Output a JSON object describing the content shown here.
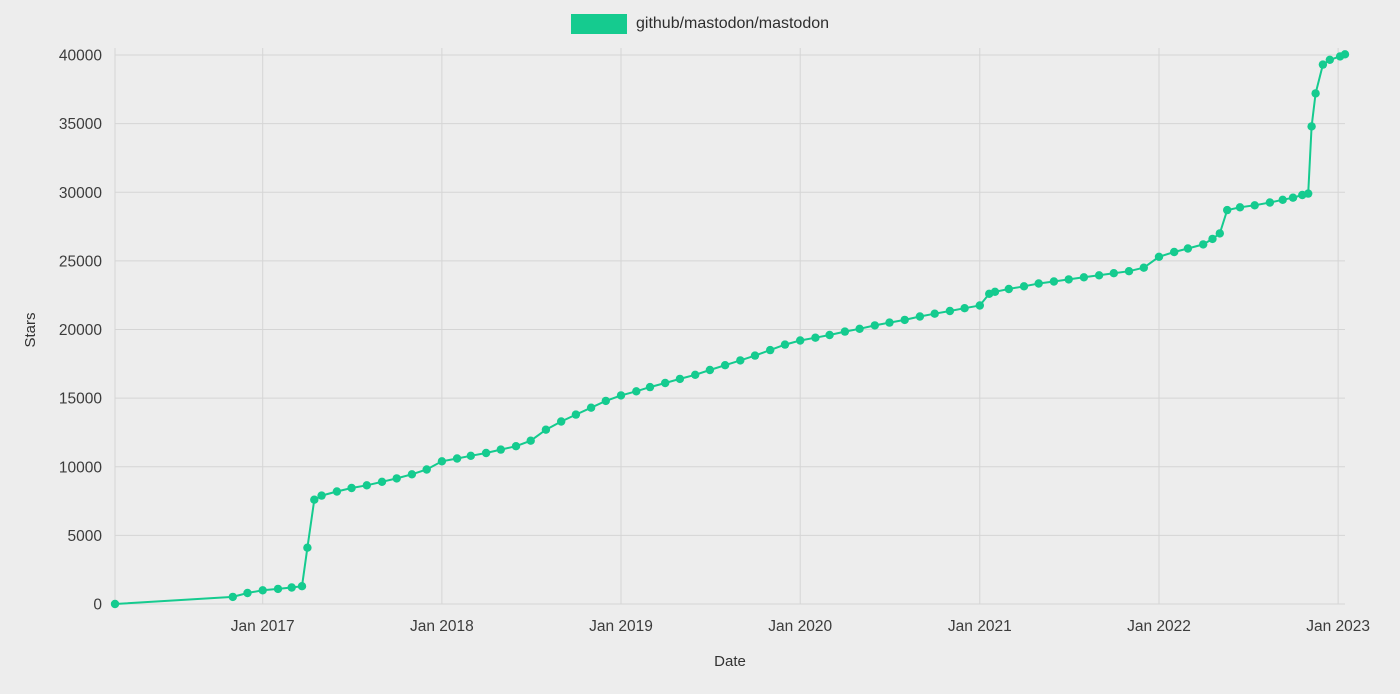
{
  "page": {
    "background": "#ededed",
    "grid_color": "#d5d5d5",
    "text_color": "#3c3c3c"
  },
  "legend": {
    "label": "github/mastodon/mastodon",
    "swatch_color": "#15cb8f"
  },
  "chart_data": {
    "type": "line",
    "title": "",
    "xlabel": "Date",
    "ylabel": "Stars",
    "ylim": [
      0,
      40000
    ],
    "grid": true,
    "legend_position": "top-center",
    "x_domain": [
      "2016-03-06",
      "2023-01-15"
    ],
    "y_ticks": [
      0,
      5000,
      10000,
      15000,
      20000,
      25000,
      30000,
      35000,
      40000
    ],
    "x_ticks": [
      {
        "date": "2017-01-01",
        "label": "Jan 2017"
      },
      {
        "date": "2018-01-01",
        "label": "Jan 2018"
      },
      {
        "date": "2019-01-01",
        "label": "Jan 2019"
      },
      {
        "date": "2020-01-01",
        "label": "Jan 2020"
      },
      {
        "date": "2021-01-01",
        "label": "Jan 2021"
      },
      {
        "date": "2022-01-01",
        "label": "Jan 2022"
      },
      {
        "date": "2023-01-01",
        "label": "Jan 2023"
      }
    ],
    "series": [
      {
        "name": "github/mastodon/mastodon",
        "color": "#15cb8f",
        "points": [
          [
            "2016-03-06",
            0
          ],
          [
            "2016-11-01",
            520
          ],
          [
            "2016-12-01",
            800
          ],
          [
            "2017-01-01",
            1000
          ],
          [
            "2017-02-01",
            1100
          ],
          [
            "2017-03-01",
            1200
          ],
          [
            "2017-03-22",
            1300
          ],
          [
            "2017-04-02",
            4100
          ],
          [
            "2017-04-16",
            7600
          ],
          [
            "2017-05-01",
            7900
          ],
          [
            "2017-06-01",
            8200
          ],
          [
            "2017-07-01",
            8450
          ],
          [
            "2017-08-01",
            8650
          ],
          [
            "2017-09-01",
            8900
          ],
          [
            "2017-10-01",
            9150
          ],
          [
            "2017-11-01",
            9450
          ],
          [
            "2017-12-01",
            9800
          ],
          [
            "2018-01-01",
            10400
          ],
          [
            "2018-02-01",
            10600
          ],
          [
            "2018-03-01",
            10800
          ],
          [
            "2018-04-01",
            11000
          ],
          [
            "2018-05-01",
            11250
          ],
          [
            "2018-06-01",
            11500
          ],
          [
            "2018-07-01",
            11900
          ],
          [
            "2018-08-01",
            12700
          ],
          [
            "2018-09-01",
            13300
          ],
          [
            "2018-10-01",
            13800
          ],
          [
            "2018-11-01",
            14300
          ],
          [
            "2018-12-01",
            14800
          ],
          [
            "2019-01-01",
            15200
          ],
          [
            "2019-02-01",
            15500
          ],
          [
            "2019-03-01",
            15800
          ],
          [
            "2019-04-01",
            16100
          ],
          [
            "2019-05-01",
            16400
          ],
          [
            "2019-06-01",
            16700
          ],
          [
            "2019-07-01",
            17050
          ],
          [
            "2019-08-01",
            17400
          ],
          [
            "2019-09-01",
            17750
          ],
          [
            "2019-10-01",
            18100
          ],
          [
            "2019-11-01",
            18500
          ],
          [
            "2019-12-01",
            18900
          ],
          [
            "2020-01-01",
            19200
          ],
          [
            "2020-02-01",
            19400
          ],
          [
            "2020-03-01",
            19600
          ],
          [
            "2020-04-01",
            19850
          ],
          [
            "2020-05-01",
            20050
          ],
          [
            "2020-06-01",
            20300
          ],
          [
            "2020-07-01",
            20500
          ],
          [
            "2020-08-01",
            20700
          ],
          [
            "2020-09-01",
            20950
          ],
          [
            "2020-10-01",
            21150
          ],
          [
            "2020-11-01",
            21350
          ],
          [
            "2020-12-01",
            21550
          ],
          [
            "2021-01-01",
            21750
          ],
          [
            "2021-01-20",
            22600
          ],
          [
            "2021-02-01",
            22750
          ],
          [
            "2021-03-01",
            22950
          ],
          [
            "2021-04-01",
            23150
          ],
          [
            "2021-05-01",
            23350
          ],
          [
            "2021-06-01",
            23500
          ],
          [
            "2021-07-01",
            23650
          ],
          [
            "2021-08-01",
            23800
          ],
          [
            "2021-09-01",
            23950
          ],
          [
            "2021-10-01",
            24100
          ],
          [
            "2021-11-01",
            24250
          ],
          [
            "2021-12-01",
            24500
          ],
          [
            "2022-01-01",
            25300
          ],
          [
            "2022-02-01",
            25650
          ],
          [
            "2022-03-01",
            25900
          ],
          [
            "2022-04-01",
            26200
          ],
          [
            "2022-04-20",
            26600
          ],
          [
            "2022-05-05",
            27000
          ],
          [
            "2022-05-20",
            28700
          ],
          [
            "2022-06-15",
            28900
          ],
          [
            "2022-07-15",
            29050
          ],
          [
            "2022-08-15",
            29250
          ],
          [
            "2022-09-10",
            29450
          ],
          [
            "2022-10-01",
            29600
          ],
          [
            "2022-10-20",
            29800
          ],
          [
            "2022-11-01",
            29900
          ],
          [
            "2022-11-08",
            34800
          ],
          [
            "2022-11-16",
            37200
          ],
          [
            "2022-12-01",
            39300
          ],
          [
            "2022-12-15",
            39650
          ],
          [
            "2023-01-05",
            39900
          ],
          [
            "2023-01-15",
            40050
          ]
        ]
      }
    ]
  }
}
